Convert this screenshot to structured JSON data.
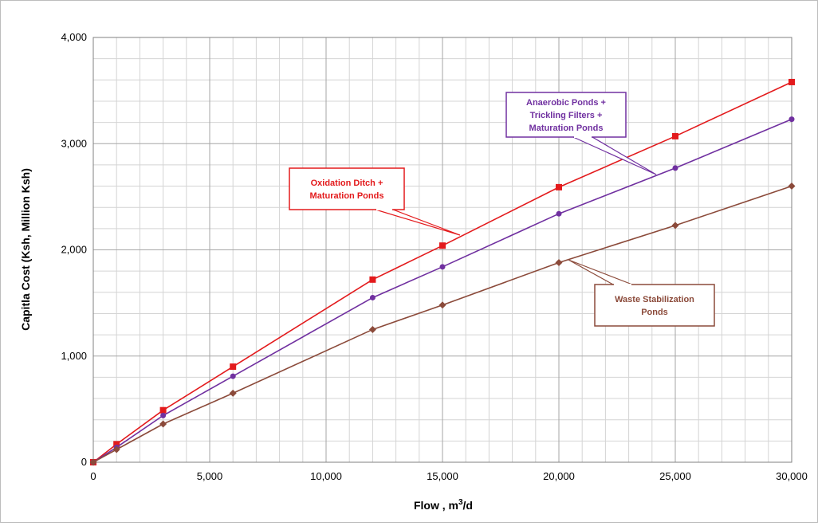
{
  "chart_data": {
    "type": "line",
    "xlabel": "Flow , m",
    "xlabel_sup": "3",
    "xlabel_tail": "/d",
    "ylabel": "Capitla Cost (Ksh, Million Ksh)",
    "xlim": [
      0,
      30000
    ],
    "ylim": [
      0,
      4000
    ],
    "grid": true,
    "x_ticks": [
      "0",
      "5,000",
      "10,000",
      "15,000",
      "20,000",
      "25,000",
      "30,000"
    ],
    "y_ticks": [
      "0",
      "1,000",
      "2,000",
      "3,000",
      "4,000"
    ],
    "series": [
      {
        "key": "oxidation",
        "color": "#e31a1c",
        "marker": "square",
        "label_lines": [
          "Oxidation Ditch +",
          "Maturation Ponds"
        ],
        "x": [
          0,
          1000,
          3000,
          6000,
          12000,
          15000,
          20000,
          25000,
          30000
        ],
        "values": [
          0,
          170,
          490,
          900,
          1720,
          2040,
          2590,
          3070,
          3580
        ]
      },
      {
        "key": "anaerobic",
        "color": "#7030a0",
        "marker": "circle",
        "label_lines": [
          "Anaerobic Ponds +",
          "Trickling Filters +",
          "Maturation Ponds"
        ],
        "x": [
          0,
          1000,
          3000,
          6000,
          12000,
          15000,
          20000,
          25000,
          30000
        ],
        "values": [
          0,
          140,
          440,
          810,
          1550,
          1840,
          2340,
          2770,
          3230
        ]
      },
      {
        "key": "waste",
        "color": "#8b4a3a",
        "marker": "diamond",
        "label_lines": [
          "Waste Stabilization",
          "Ponds"
        ],
        "x": [
          0,
          1000,
          3000,
          6000,
          12000,
          15000,
          20000,
          25000,
          30000
        ],
        "values": [
          0,
          120,
          360,
          650,
          1250,
          1480,
          1880,
          2230,
          2600
        ]
      }
    ],
    "callouts": {
      "oxidation": {
        "border": "#e31a1c",
        "text": "#e31a1c"
      },
      "anaerobic": {
        "border": "#7030a0",
        "text": "#7030a0"
      },
      "waste": {
        "border": "#8b4a3a",
        "text": "#8b4a3a"
      }
    }
  }
}
